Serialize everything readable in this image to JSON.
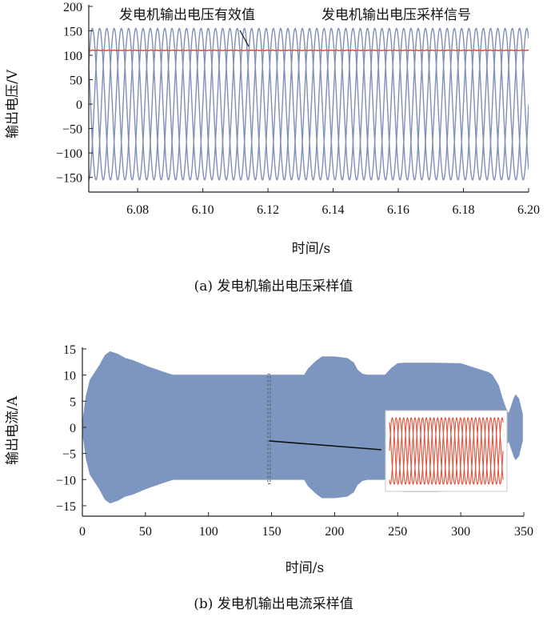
{
  "colors": {
    "phase": "#8090b8",
    "rms": "#e0503a",
    "envelope": "#7d96c0",
    "inset_wave": "#e0503a",
    "axis": "#222222"
  },
  "chart_data": [
    {
      "type": "line",
      "ylabel": "输出电压/V",
      "xlabel": "时间/s",
      "caption": "(a) 发电机输出电压采样值",
      "annotations": [
        "发电机输出电压有效值",
        "发电机输出电压采样信号"
      ],
      "xlim": [
        6.065,
        6.2
      ],
      "ylim": [
        -180,
        200
      ],
      "x_ticks": [
        6.08,
        6.1,
        6.12,
        6.14,
        6.16,
        6.18,
        6.2
      ],
      "x_tick_labels": [
        "6.08",
        "6.10",
        "6.12",
        "6.14",
        "6.16",
        "6.18",
        "6.20"
      ],
      "y_ticks": [
        -150,
        -100,
        -50,
        0,
        50,
        100,
        150,
        200
      ],
      "y_tick_labels": [
        "−150",
        "−100",
        "−50",
        "0",
        "50",
        "100",
        "150",
        "200"
      ],
      "series": [
        {
          "kind": "sine",
          "amplitude": 155,
          "frequency_hz": 150,
          "phase_deg": 0
        },
        {
          "kind": "sine",
          "amplitude": 155,
          "frequency_hz": 150,
          "phase_deg": -120
        },
        {
          "kind": "sine",
          "amplitude": 155,
          "frequency_hz": 150,
          "phase_deg": 120
        },
        {
          "kind": "constant",
          "value": 110
        }
      ]
    },
    {
      "type": "area",
      "ylabel": "输出电流/A",
      "xlabel": "时间/s",
      "caption": "(b) 发电机输出电流采样值",
      "xlim": [
        0,
        350
      ],
      "ylim": [
        -17,
        15
      ],
      "x_ticks": [
        0,
        50,
        100,
        150,
        200,
        250,
        300,
        350
      ],
      "x_tick_labels": [
        "0",
        "50",
        "100",
        "150",
        "200",
        "250",
        "300",
        "350"
      ],
      "y_ticks": [
        -15,
        -10,
        -5,
        0,
        5,
        10,
        15
      ],
      "y_tick_labels": [
        "−15",
        "−10",
        "−5",
        "0",
        "5",
        "10",
        "15"
      ],
      "envelope": {
        "t": [
          0,
          1,
          3,
          6,
          10,
          14,
          18,
          22,
          28,
          34,
          40,
          46,
          52,
          58,
          64,
          69,
          72,
          100,
          150,
          176,
          179,
          185,
          190,
          200,
          210,
          215,
          218,
          222,
          226,
          240,
          245,
          250,
          255,
          280,
          300,
          322,
          325,
          330,
          333,
          336,
          338,
          340,
          342,
          343.5,
          346,
          349
        ],
        "amp": [
          0.5,
          2.5,
          6,
          9,
          10.5,
          12,
          13.8,
          14.5,
          14,
          13.2,
          12.8,
          12.2,
          11.6,
          11.1,
          10.6,
          10.2,
          10,
          10,
          10,
          10,
          11.2,
          12.6,
          13.5,
          13.5,
          13.2,
          12.4,
          11,
          10.2,
          10,
          10,
          11.3,
          12.2,
          12.3,
          12.3,
          12.2,
          10.5,
          10,
          8,
          5.5,
          3.5,
          2.6,
          4,
          5.5,
          6.2,
          5.5,
          2.5
        ]
      },
      "inset": {
        "zoom_time_s": 148,
        "cycles": 10,
        "phases": 3
      }
    }
  ]
}
